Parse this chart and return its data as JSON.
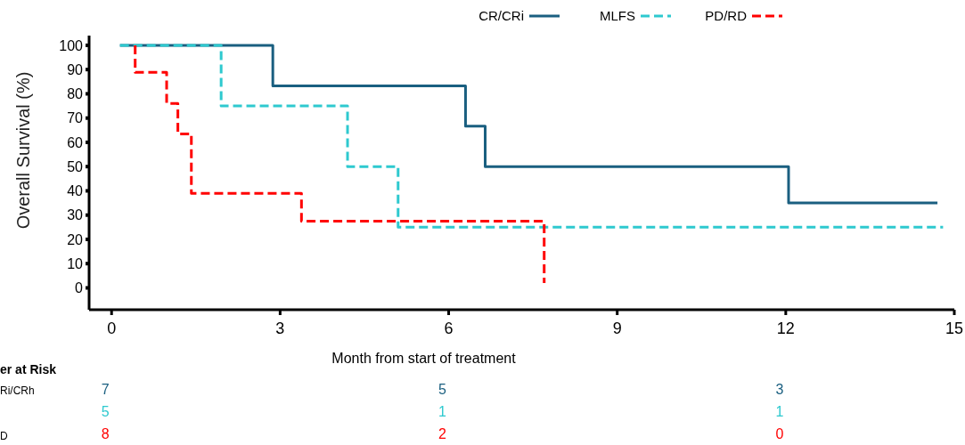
{
  "chart_data": {
    "type": "step",
    "xlabel": "Month from start of treatment",
    "ylabel": "Overall Survival (%)",
    "xlim": [
      -0.4,
      15
    ],
    "xticks": [
      0,
      3,
      6,
      9,
      12,
      15
    ],
    "ylim": [
      -9,
      104
    ],
    "yticks": [
      0,
      10,
      20,
      30,
      40,
      50,
      60,
      70,
      80,
      90,
      100
    ],
    "grid": false,
    "legend": "top right",
    "series": [
      {
        "name": "CR/CRi",
        "color": "#1a5f80",
        "line_style": "solid",
        "x": [
          0.15,
          2.87,
          6.3,
          6.65,
          12.05,
          14.7
        ],
        "values": [
          100,
          83.3,
          66.7,
          50,
          35,
          35
        ]
      },
      {
        "name": "MLFS",
        "color": "#2ec9cf",
        "line_style": "dashed",
        "x": [
          0.15,
          1.95,
          4.2,
          5.1,
          14.8
        ],
        "values": [
          100,
          75,
          50,
          25,
          25
        ]
      },
      {
        "name": "PD/RD",
        "color": "#ff0000",
        "line_style": "dashed",
        "x": [
          0.42,
          0.42,
          0.98,
          1.18,
          1.42,
          3.38,
          7.7,
          7.7
        ],
        "values": [
          100,
          88.9,
          76,
          63.5,
          39,
          27.5,
          2,
          2
        ]
      }
    ],
    "annotations": [
      "er at Risk",
      "Ri/CRh",
      "D",
      "7",
      "5",
      "3",
      "5",
      "1",
      "1",
      "8",
      "2",
      "0"
    ]
  }
}
